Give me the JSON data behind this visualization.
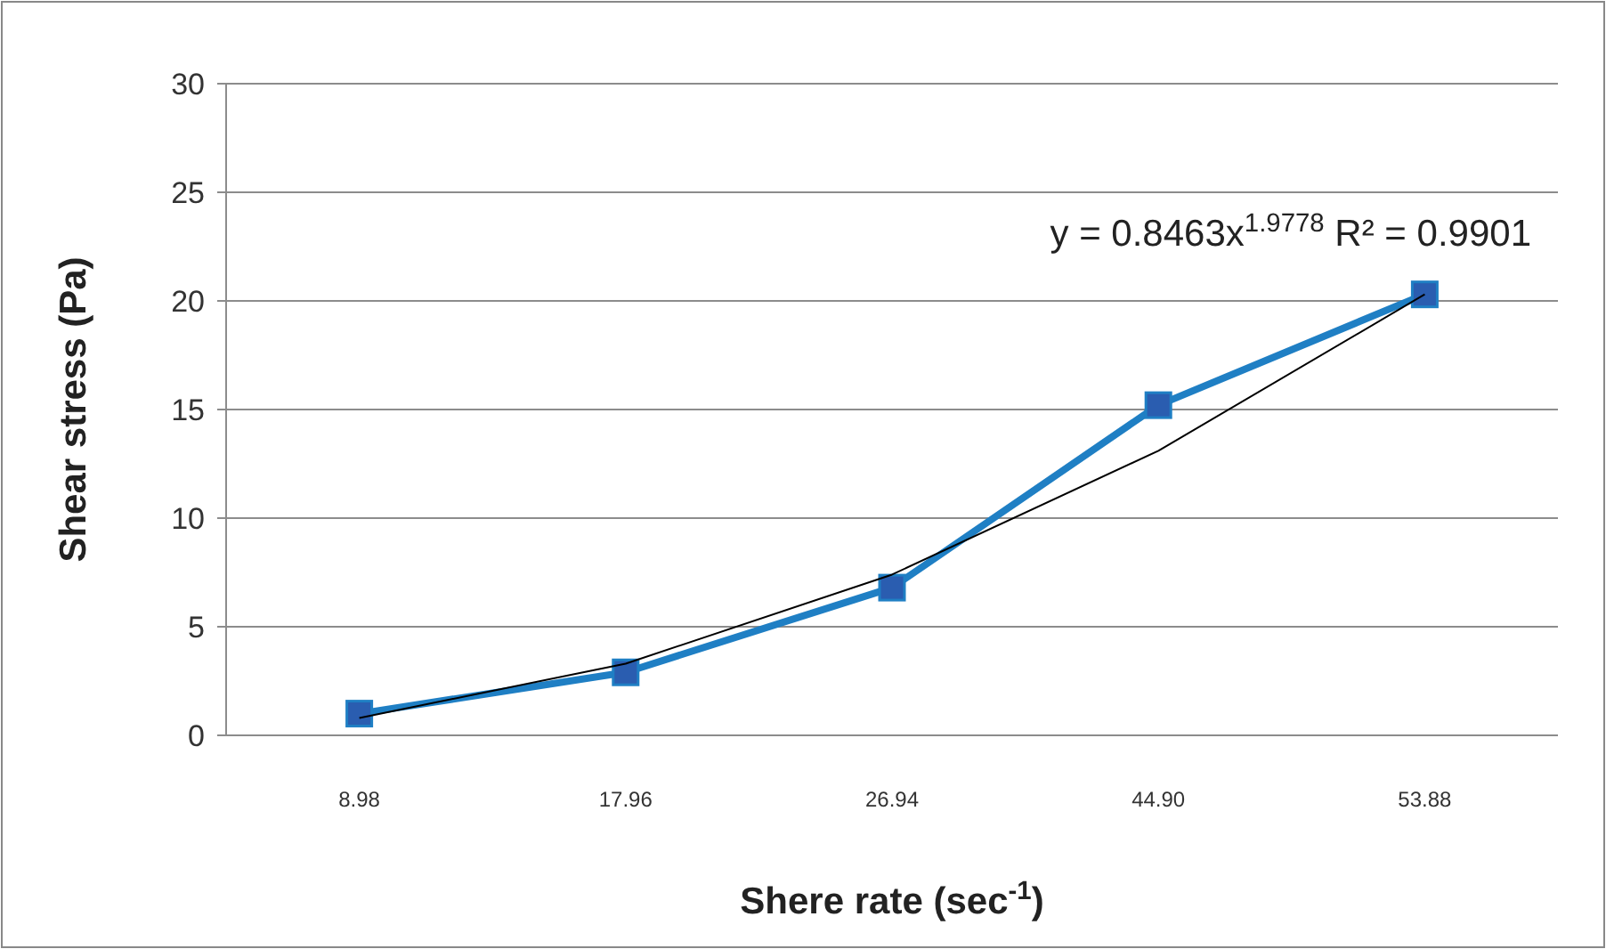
{
  "chart_data": {
    "type": "line",
    "xlabel": "Shere rate (sec$^{-1}$)",
    "ylabel": "Shear stress (Pa)",
    "categories": [
      "8.98",
      "17.96",
      "26.94",
      "44.90",
      "53.88"
    ],
    "series": [
      {
        "color": "#1f7fc4",
        "values": [
          1.0,
          2.9,
          6.8,
          15.2,
          20.3
        ],
        "marker": "square"
      },
      {
        "color": "#000000",
        "values": [
          0.8,
          3.3,
          7.4,
          13.1,
          20.3
        ],
        "marker": "none"
      }
    ],
    "ylim": [
      0,
      30
    ],
    "yticks": [
      0,
      5,
      10,
      15,
      20,
      25,
      30
    ],
    "grid": "y",
    "annotations": [
      "y = 0.8463x$^{1.9778}$  R² = 0.9901"
    ]
  }
}
